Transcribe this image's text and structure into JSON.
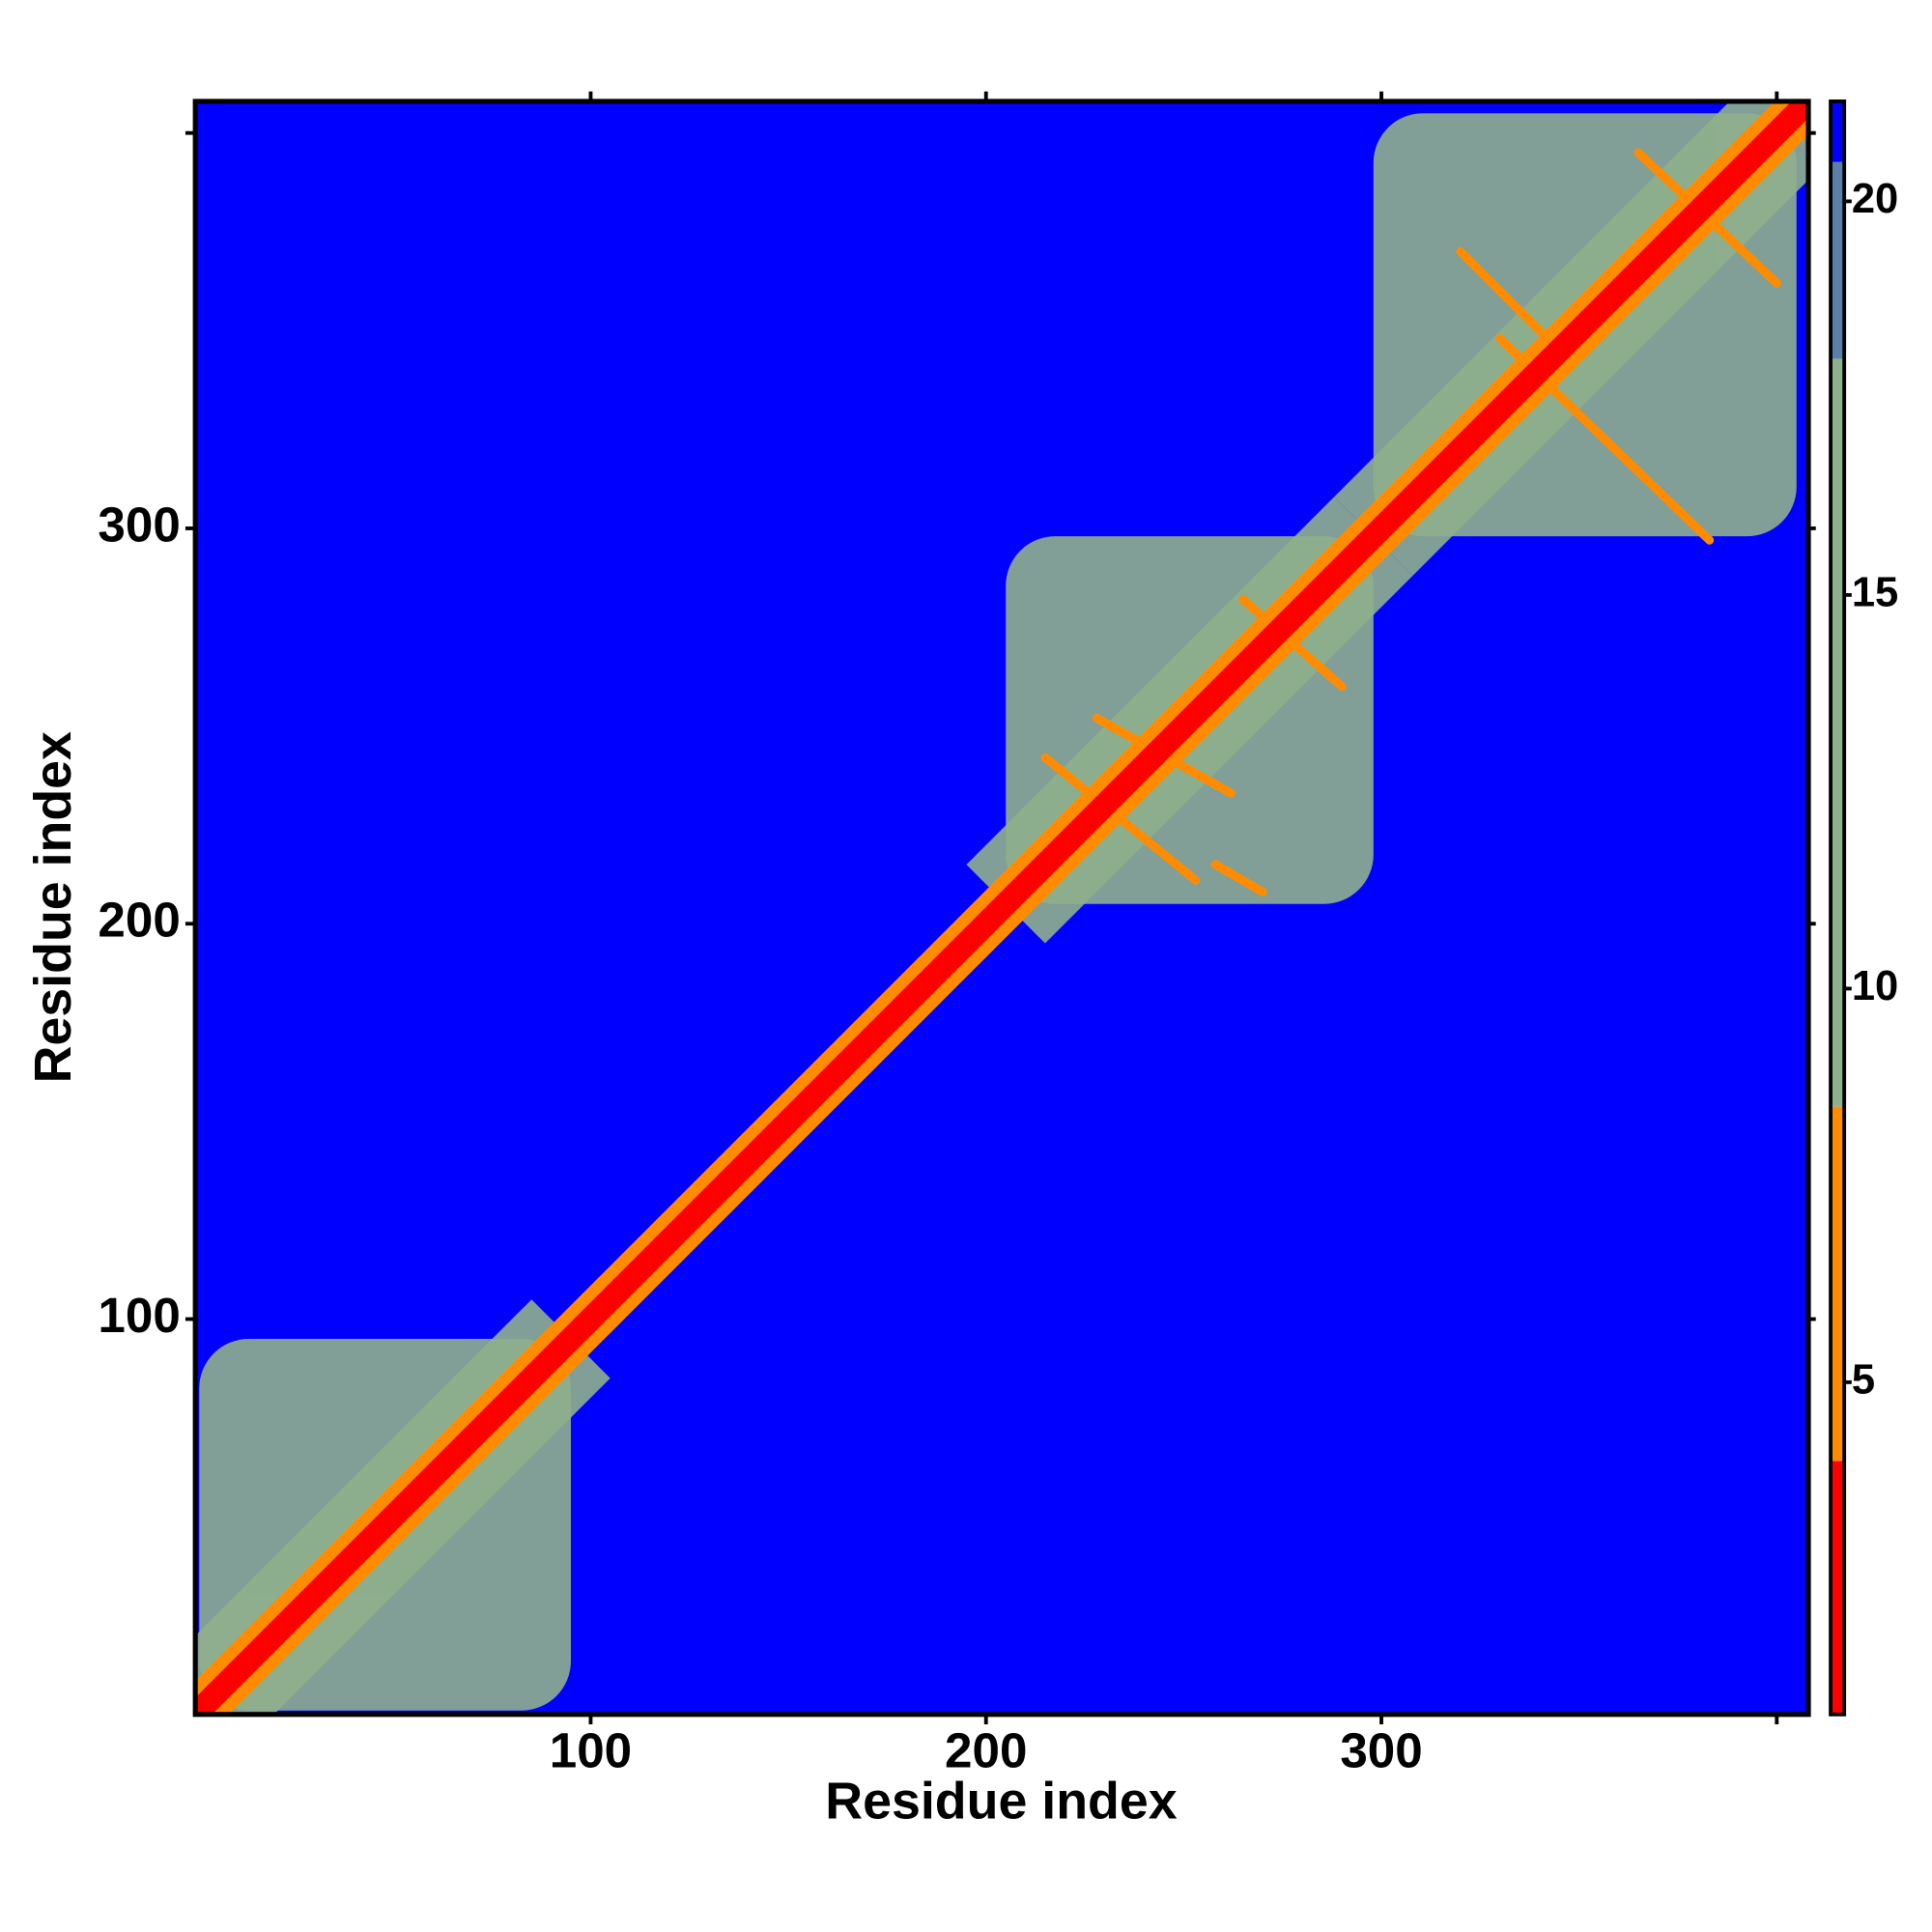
{
  "chart_data": {
    "type": "heatmap",
    "xlabel": "Residue index",
    "ylabel": "Residue index",
    "xlim": [
      0,
      408
    ],
    "ylim": [
      0,
      408
    ],
    "xticks": [
      100,
      200,
      300
    ],
    "yticks": [
      100,
      200,
      300
    ],
    "minor_ticks": [
      400
    ],
    "background": 21,
    "diagonal": {
      "value": 2,
      "halo": 6,
      "halo_width": 6
    },
    "domains": [
      {
        "start": 1,
        "end": 95,
        "value": 12
      },
      {
        "start": 205,
        "end": 298,
        "value": 12
      },
      {
        "start": 298,
        "end": 405,
        "value": 12
      }
    ],
    "strands": [
      {
        "x1": 330,
        "y1": 348,
        "x2": 383,
        "y2": 297,
        "value": 6
      },
      {
        "x1": 320,
        "y1": 370,
        "x2": 345,
        "y2": 345,
        "value": 6
      },
      {
        "x1": 365,
        "y1": 395,
        "x2": 400,
        "y2": 362,
        "value": 6
      },
      {
        "x1": 215,
        "y1": 242,
        "x2": 253,
        "y2": 211,
        "value": 6
      },
      {
        "x1": 228,
        "y1": 252,
        "x2": 262,
        "y2": 233,
        "value": 6
      },
      {
        "x1": 265,
        "y1": 282,
        "x2": 290,
        "y2": 260,
        "value": 6
      },
      {
        "x1": 258,
        "y1": 215,
        "x2": 270,
        "y2": 208,
        "value": 6
      }
    ],
    "colorbar": {
      "lim": [
        0.78,
        21.27
      ],
      "ticks": [
        5,
        10,
        15,
        20
      ],
      "segments": [
        {
          "from": 0.78,
          "to": 4,
          "color": "#ff0000"
        },
        {
          "from": 4,
          "to": 8.5,
          "color": "#ff8c00"
        },
        {
          "from": 8.5,
          "to": 18,
          "color": "#8fb08c"
        },
        {
          "from": 18,
          "to": 20.5,
          "color": "#5a7fa8"
        },
        {
          "from": 20.5,
          "to": 21.27,
          "color": "#0000ff"
        }
      ]
    }
  }
}
